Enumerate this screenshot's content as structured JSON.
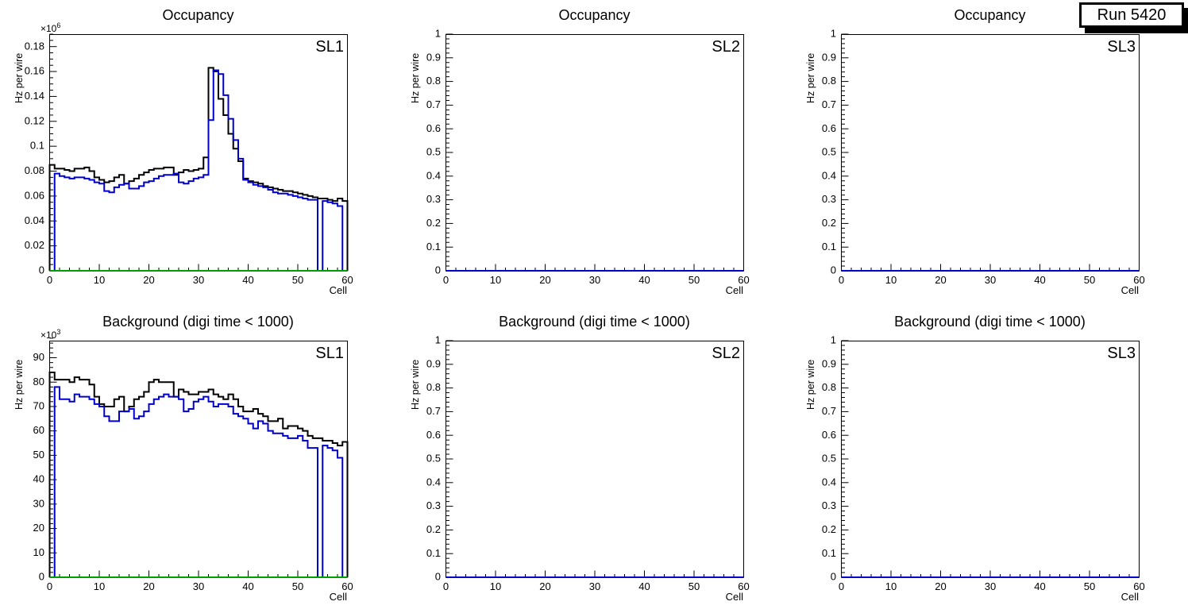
{
  "run_label": "Run 5420",
  "colors": {
    "histogram_black": "#000000",
    "histogram_blue": "#0000cc",
    "zero_line_green": "#00a000",
    "frame": "#000000",
    "pave_shadow": "#000000"
  },
  "chart_data": [
    {
      "type": "bar",
      "title": "Occupancy",
      "sl_label": "SL1",
      "ylabel": "Hz per wire",
      "xlabel": "Cell",
      "exp_base": "×10",
      "exp_power": "6",
      "xlim": [
        0,
        60
      ],
      "ylim": [
        0,
        0.19
      ],
      "x_major": 10,
      "x_minor": 2,
      "y_major": 0.02,
      "y_minor": 0.005,
      "y_label_max": 0.18,
      "zero_line": true,
      "series": [
        {
          "name": "black-histogram",
          "color": "#000000",
          "values": [
            0.085,
            0.082,
            0.082,
            0.081,
            0.08,
            0.082,
            0.082,
            0.083,
            0.08,
            0.075,
            0.073,
            0.071,
            0.072,
            0.075,
            0.077,
            0.07,
            0.072,
            0.074,
            0.077,
            0.079,
            0.081,
            0.082,
            0.082,
            0.083,
            0.083,
            0.077,
            0.079,
            0.081,
            0.08,
            0.081,
            0.082,
            0.091,
            0.163,
            0.16,
            0.138,
            0.125,
            0.11,
            0.098,
            0.088,
            0.074,
            0.072,
            0.071,
            0.07,
            0.068,
            0.067,
            0.066,
            0.065,
            0.064,
            0.064,
            0.063,
            0.062,
            0.061,
            0.06,
            0.059,
            0.058,
            0.058,
            0.057,
            0.056,
            0.058,
            0.056
          ]
        },
        {
          "name": "blue-histogram",
          "color": "#0000cc",
          "values": [
            0,
            0.078,
            0.076,
            0.075,
            0.074,
            0.075,
            0.075,
            0.074,
            0.073,
            0.071,
            0.07,
            0.064,
            0.063,
            0.067,
            0.069,
            0.07,
            0.066,
            0.066,
            0.068,
            0.071,
            0.072,
            0.074,
            0.076,
            0.077,
            0.077,
            0.078,
            0.071,
            0.07,
            0.072,
            0.074,
            0.075,
            0.077,
            0.121,
            0.161,
            0.158,
            0.141,
            0.122,
            0.105,
            0.09,
            0.073,
            0.071,
            0.069,
            0.068,
            0.067,
            0.065,
            0.063,
            0.062,
            0.062,
            0.061,
            0.06,
            0.059,
            0.058,
            0.057,
            0.057,
            0,
            0.056,
            0.055,
            0.054,
            0.052,
            0
          ]
        }
      ]
    },
    {
      "type": "bar",
      "title": "Occupancy",
      "sl_label": "SL2",
      "ylabel": "Hz per wire",
      "xlabel": "Cell",
      "exp_base": "",
      "exp_power": "",
      "xlim": [
        0,
        60
      ],
      "ylim": [
        0,
        1
      ],
      "x_major": 10,
      "x_minor": 2,
      "y_major": 0.1,
      "y_minor": 0.02,
      "y_label_max": 1,
      "zero_line": false,
      "series": [
        {
          "name": "blue-histogram",
          "color": "#0000cc",
          "values": [
            0,
            0,
            0,
            0,
            0,
            0,
            0,
            0,
            0,
            0,
            0,
            0,
            0,
            0,
            0,
            0,
            0,
            0,
            0,
            0,
            0,
            0,
            0,
            0,
            0,
            0,
            0,
            0,
            0,
            0,
            0,
            0,
            0,
            0,
            0,
            0,
            0,
            0,
            0,
            0,
            0,
            0,
            0,
            0,
            0,
            0,
            0,
            0,
            0,
            0,
            0,
            0,
            0,
            0,
            0,
            0,
            0,
            0,
            0,
            0
          ]
        }
      ]
    },
    {
      "type": "bar",
      "title": "Occupancy",
      "sl_label": "SL3",
      "ylabel": "Hz per wire",
      "xlabel": "Cell",
      "exp_base": "",
      "exp_power": "",
      "xlim": [
        0,
        60
      ],
      "ylim": [
        0,
        1
      ],
      "x_major": 10,
      "x_minor": 2,
      "y_major": 0.1,
      "y_minor": 0.02,
      "y_label_max": 1,
      "zero_line": false,
      "series": [
        {
          "name": "blue-histogram",
          "color": "#0000cc",
          "values": [
            0,
            0,
            0,
            0,
            0,
            0,
            0,
            0,
            0,
            0,
            0,
            0,
            0,
            0,
            0,
            0,
            0,
            0,
            0,
            0,
            0,
            0,
            0,
            0,
            0,
            0,
            0,
            0,
            0,
            0,
            0,
            0,
            0,
            0,
            0,
            0,
            0,
            0,
            0,
            0,
            0,
            0,
            0,
            0,
            0,
            0,
            0,
            0,
            0,
            0,
            0,
            0,
            0,
            0,
            0,
            0,
            0,
            0,
            0,
            0
          ]
        }
      ]
    },
    {
      "type": "bar",
      "title": "Background (digi time < 1000)",
      "sl_label": "SL1",
      "ylabel": "Hz per wire",
      "xlabel": "Cell",
      "exp_base": "×10",
      "exp_power": "3",
      "xlim": [
        0,
        60
      ],
      "ylim": [
        0,
        97
      ],
      "x_major": 10,
      "x_minor": 2,
      "y_major": 10,
      "y_minor": 2,
      "y_label_max": 90,
      "zero_line": true,
      "series": [
        {
          "name": "black-histogram",
          "color": "#000000",
          "values": [
            84,
            81,
            81,
            81,
            80,
            82,
            81,
            81,
            79,
            74,
            71,
            70,
            70,
            73,
            74,
            68,
            70,
            73,
            74,
            76,
            80,
            81,
            80,
            80,
            80,
            74,
            77,
            76,
            75,
            75,
            76,
            76,
            77,
            75,
            74,
            73,
            75,
            73,
            70,
            68,
            68,
            69,
            67,
            66,
            64,
            64,
            65,
            61,
            62,
            62,
            61,
            60,
            58,
            57,
            57,
            56,
            56,
            55,
            54,
            55.5
          ]
        },
        {
          "name": "blue-histogram",
          "color": "#0000cc",
          "values": [
            0,
            78,
            73,
            73,
            72,
            75,
            74,
            74,
            73,
            71,
            70,
            66,
            64,
            64,
            68,
            68,
            69,
            65,
            66,
            68,
            71,
            73,
            74,
            75,
            74,
            74,
            73,
            68,
            69,
            72,
            73,
            74,
            72,
            70,
            71,
            71,
            70,
            67,
            66,
            65,
            63,
            61,
            64,
            63,
            60,
            59,
            59,
            58,
            57,
            57,
            58,
            56,
            53,
            53,
            0,
            54,
            53,
            52,
            49,
            0
          ]
        }
      ]
    },
    {
      "type": "bar",
      "title": "Background (digi time < 1000)",
      "sl_label": "SL2",
      "ylabel": "Hz per wire",
      "xlabel": "Cell",
      "exp_base": "",
      "exp_power": "",
      "xlim": [
        0,
        60
      ],
      "ylim": [
        0,
        1
      ],
      "x_major": 10,
      "x_minor": 2,
      "y_major": 0.1,
      "y_minor": 0.02,
      "y_label_max": 1,
      "zero_line": false,
      "series": [
        {
          "name": "blue-histogram",
          "color": "#0000cc",
          "values": [
            0,
            0,
            0,
            0,
            0,
            0,
            0,
            0,
            0,
            0,
            0,
            0,
            0,
            0,
            0,
            0,
            0,
            0,
            0,
            0,
            0,
            0,
            0,
            0,
            0,
            0,
            0,
            0,
            0,
            0,
            0,
            0,
            0,
            0,
            0,
            0,
            0,
            0,
            0,
            0,
            0,
            0,
            0,
            0,
            0,
            0,
            0,
            0,
            0,
            0,
            0,
            0,
            0,
            0,
            0,
            0,
            0,
            0,
            0,
            0
          ]
        }
      ]
    },
    {
      "type": "bar",
      "title": "Background (digi time < 1000)",
      "sl_label": "SL3",
      "ylabel": "Hz per wire",
      "xlabel": "Cell",
      "exp_base": "",
      "exp_power": "",
      "xlim": [
        0,
        60
      ],
      "ylim": [
        0,
        1
      ],
      "x_major": 10,
      "x_minor": 2,
      "y_major": 0.1,
      "y_minor": 0.02,
      "y_label_max": 1,
      "zero_line": false,
      "series": [
        {
          "name": "blue-histogram",
          "color": "#0000cc",
          "values": [
            0,
            0,
            0,
            0,
            0,
            0,
            0,
            0,
            0,
            0,
            0,
            0,
            0,
            0,
            0,
            0,
            0,
            0,
            0,
            0,
            0,
            0,
            0,
            0,
            0,
            0,
            0,
            0,
            0,
            0,
            0,
            0,
            0,
            0,
            0,
            0,
            0,
            0,
            0,
            0,
            0,
            0,
            0,
            0,
            0,
            0,
            0,
            0,
            0,
            0,
            0,
            0,
            0,
            0,
            0,
            0,
            0,
            0,
            0,
            0
          ]
        }
      ]
    }
  ]
}
